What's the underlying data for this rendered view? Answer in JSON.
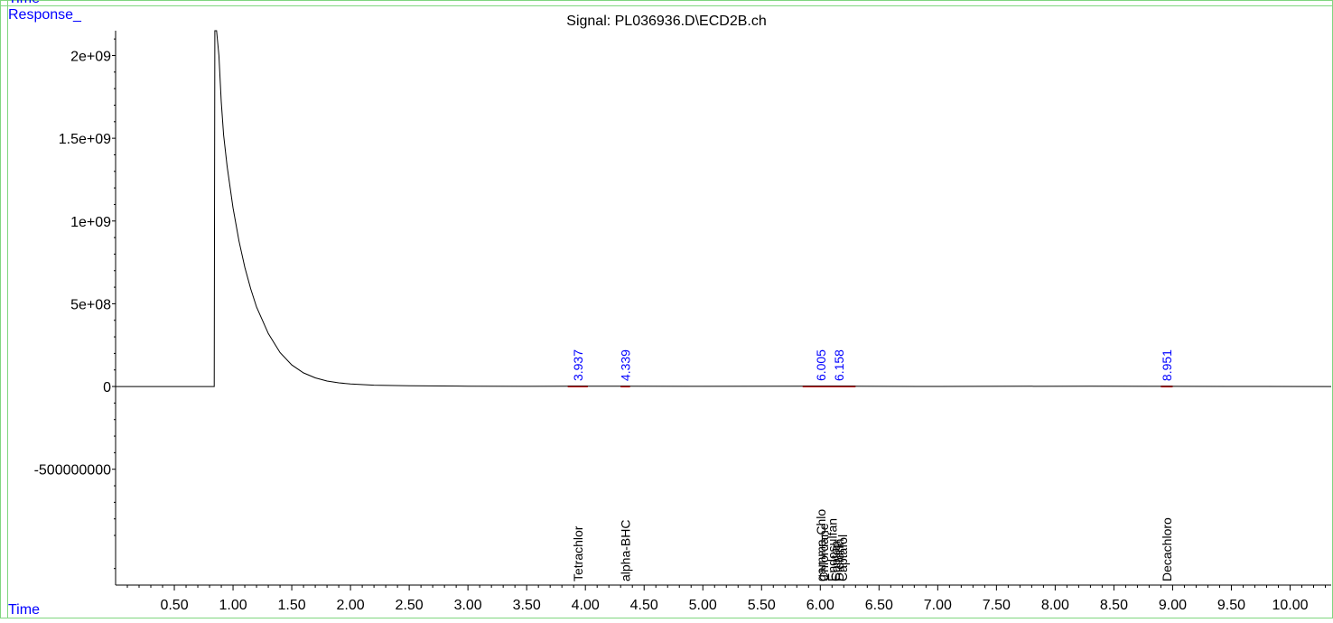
{
  "header": {
    "top_cut_label": "Time",
    "y_title": "Response_",
    "x_title": "Time",
    "signal_title": "Signal: PL036936.D\\ECD2B.ch"
  },
  "colors": {
    "frame": "#7fd67f",
    "axis_title": "#0000ff",
    "peak_label": "#0000ff",
    "baseline_marker": "#ff0000",
    "trace": "#000000"
  },
  "chart_data": {
    "type": "line",
    "title": "Signal: PL036936.D\\ECD2B.ch",
    "xlabel": "Time",
    "ylabel": "Response_",
    "xlim": [
      0.0,
      10.35
    ],
    "ylim": [
      -1200000000,
      2150000000
    ],
    "x_ticks": [
      0.5,
      1.0,
      1.5,
      2.0,
      2.5,
      3.0,
      3.5,
      4.0,
      4.5,
      5.0,
      5.5,
      6.0,
      6.5,
      7.0,
      7.5,
      8.0,
      8.5,
      9.0,
      9.5,
      10.0
    ],
    "x_tick_labels": [
      "0.50",
      "1.00",
      "1.50",
      "2.00",
      "2.50",
      "3.00",
      "3.50",
      "4.00",
      "4.50",
      "5.00",
      "5.50",
      "6.00",
      "6.50",
      "7.00",
      "7.50",
      "8.00",
      "8.50",
      "9.00",
      "9.50",
      "10.00"
    ],
    "y_ticks": [
      2000000000,
      1500000000,
      1000000000,
      500000000,
      0,
      -500000000
    ],
    "y_tick_labels": [
      "2e+09",
      "1.5e+09",
      "1e+09",
      "5e+08",
      "0",
      "-500000000"
    ],
    "series": [
      {
        "x": [
          0.0,
          0.84,
          0.845,
          0.86,
          0.88,
          0.9,
          0.92,
          0.95,
          1.0,
          1.05,
          1.1,
          1.15,
          1.2,
          1.3,
          1.4,
          1.5,
          1.6,
          1.7,
          1.8,
          1.9,
          2.0,
          2.2,
          2.5,
          3.0,
          3.5,
          3.937,
          4.339,
          5.0,
          6.005,
          6.158,
          7.0,
          8.3,
          8.951,
          9.5,
          10.35
        ],
        "y": [
          0,
          0,
          2150000000,
          2150000000,
          2000000000,
          1720000000,
          1520000000,
          1330000000,
          1080000000,
          880000000,
          720000000,
          590000000,
          480000000,
          320000000,
          205000000,
          130000000,
          82000000,
          52000000,
          33000000,
          22000000,
          15000000,
          8000000,
          4000000,
          2000000,
          1000000,
          1500000,
          1500000,
          1000000,
          1800000,
          1800000,
          500000,
          2000000,
          1000000,
          500000,
          0
        ]
      }
    ],
    "peak_labels": [
      {
        "rt": 3.937,
        "label": "3.937"
      },
      {
        "rt": 4.339,
        "label": "4.339"
      },
      {
        "rt": 6.005,
        "label": "6.005"
      },
      {
        "rt": 6.158,
        "label": "6.158"
      },
      {
        "rt": 8.951,
        "label": "8.951"
      }
    ],
    "baseline_markers": [
      {
        "x0": 3.85,
        "x1": 4.02
      },
      {
        "x0": 4.3,
        "x1": 4.38
      },
      {
        "x0": 5.85,
        "x1": 6.3
      },
      {
        "x0": 8.9,
        "x1": 9.0
      }
    ],
    "compound_labels": [
      {
        "rt": 3.937,
        "label": "Tetrachlor"
      },
      {
        "rt": 4.339,
        "label": "alpha-BHC"
      },
      {
        "rt": 6.005,
        "label": "gamma-Chlo"
      },
      {
        "rt": 6.03,
        "label": "Chlordane"
      },
      {
        "rt": 6.1,
        "label": "Endosulfan"
      },
      {
        "rt": 6.13,
        "label": "Captan"
      },
      {
        "rt": 6.158,
        "label": "Dieldrin"
      },
      {
        "rt": 6.19,
        "label": "Captafol"
      },
      {
        "rt": 8.951,
        "label": "Decachloro"
      }
    ]
  }
}
